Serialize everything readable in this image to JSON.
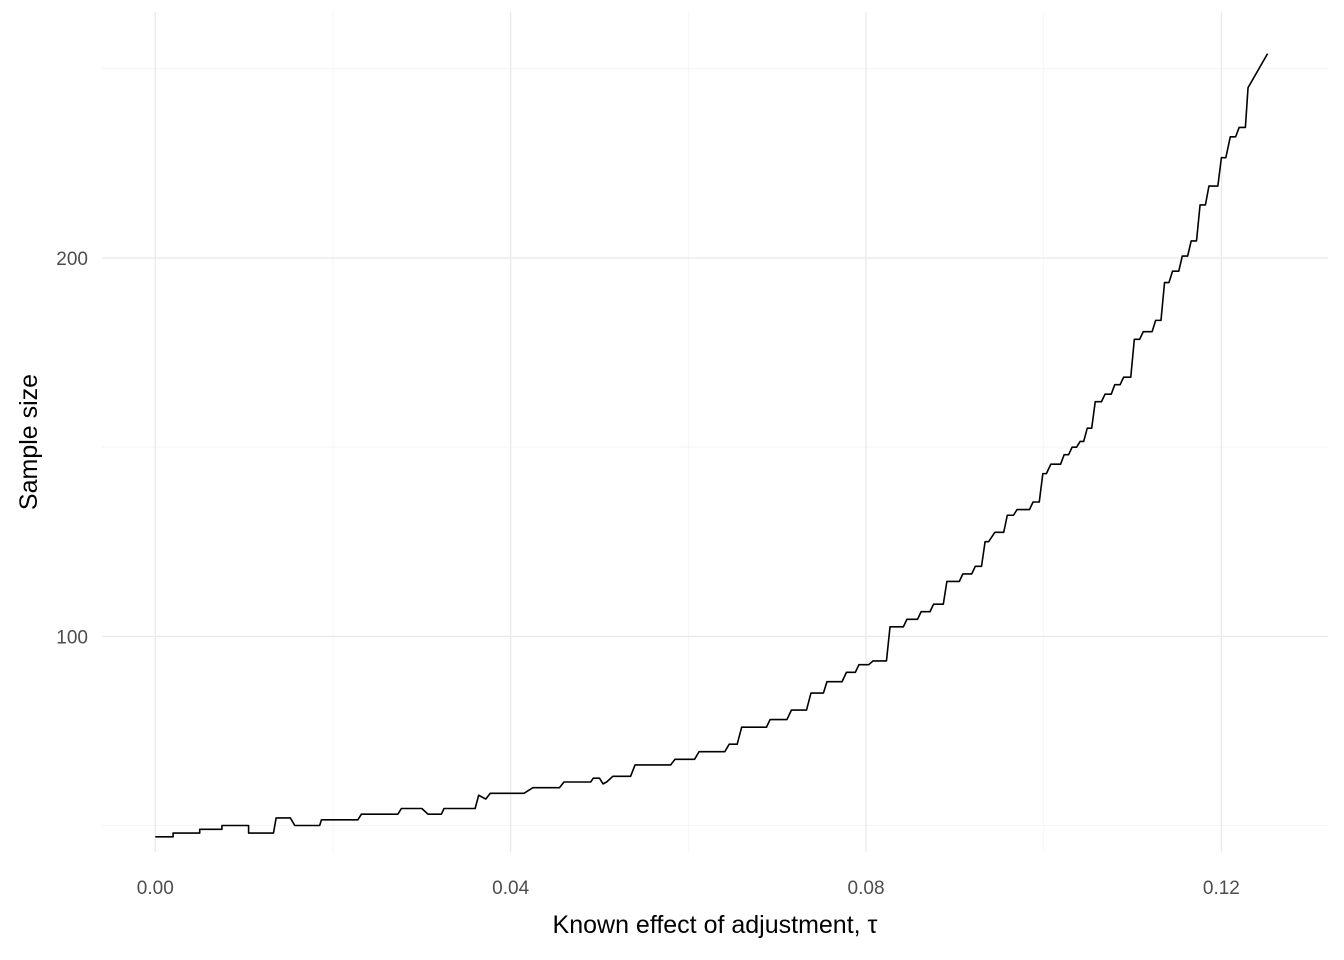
{
  "chart_data": {
    "type": "line",
    "title": "",
    "xlabel": "Known effect of adjustment, τ",
    "ylabel": "Sample size",
    "xlim": [
      -0.006,
      0.132
    ],
    "ylim": [
      43,
      265
    ],
    "x_ticks": [
      0.0,
      0.04,
      0.08,
      0.12
    ],
    "x_tick_labels": [
      "0.00",
      "0.04",
      "0.08",
      "0.12"
    ],
    "y_ticks": [
      100,
      200
    ],
    "y_tick_labels": [
      "100",
      "200"
    ],
    "grid": true,
    "legend": "none",
    "series": [
      {
        "color": "#000000",
        "x": [
          0.0,
          0.002,
          0.002,
          0.005,
          0.005,
          0.0075,
          0.0075,
          0.0105,
          0.0105,
          0.0133,
          0.0136,
          0.0152,
          0.0157,
          0.0185,
          0.0187,
          0.0228,
          0.0232,
          0.0273,
          0.0277,
          0.03,
          0.0307,
          0.0322,
          0.0325,
          0.036,
          0.0364,
          0.0372,
          0.0377,
          0.0415,
          0.0425,
          0.0455,
          0.046,
          0.049,
          0.0493,
          0.05,
          0.0504,
          0.0508,
          0.0515,
          0.0535,
          0.054,
          0.058,
          0.0585,
          0.0607,
          0.0612,
          0.0641,
          0.0646,
          0.0655,
          0.066,
          0.0688,
          0.0692,
          0.0711,
          0.0716,
          0.0733,
          0.0738,
          0.0752,
          0.0756,
          0.0773,
          0.0778,
          0.0788,
          0.0792,
          0.0803,
          0.0808,
          0.0823,
          0.0827,
          0.0842,
          0.0846,
          0.0858,
          0.0862,
          0.0872,
          0.0876,
          0.0887,
          0.0891,
          0.0905,
          0.0909,
          0.0919,
          0.0923,
          0.093,
          0.0934,
          0.0938,
          0.0945,
          0.0955,
          0.0959,
          0.0966,
          0.097,
          0.0984,
          0.0988,
          0.0995,
          0.0999,
          0.1003,
          0.1008,
          0.1019,
          0.1023,
          0.1028,
          0.1032,
          0.1037,
          0.1041,
          0.1045,
          0.1049,
          0.1054,
          0.1058,
          0.1065,
          0.1069,
          0.1076,
          0.108,
          0.1086,
          0.109,
          0.1098,
          0.1102,
          0.1108,
          0.1112,
          0.1122,
          0.1126,
          0.1132,
          0.1136,
          0.1141,
          0.1145,
          0.1152,
          0.1156,
          0.1162,
          0.1166,
          0.1172,
          0.1176,
          0.1182,
          0.1186,
          0.1196,
          0.12,
          0.1205,
          0.121,
          0.1216,
          0.122,
          0.1227,
          0.123,
          0.1252
        ],
        "y": [
          47,
          47,
          48,
          48,
          49,
          49,
          50,
          50,
          48,
          48,
          52,
          52,
          50,
          50,
          51.5,
          51.5,
          53,
          53,
          54.5,
          54.5,
          53,
          53,
          54.5,
          54.5,
          58,
          57,
          58.5,
          58.5,
          60,
          60,
          61.5,
          61.5,
          62.5,
          62.5,
          61,
          61.5,
          63,
          63,
          66,
          66,
          67.5,
          67.5,
          69.5,
          69.5,
          71.5,
          71.5,
          76,
          76,
          78,
          78,
          80.5,
          80.5,
          85,
          85,
          88,
          88,
          90.5,
          90.5,
          92.5,
          92.5,
          93.5,
          93.5,
          102.5,
          102.5,
          104.5,
          104.5,
          106.5,
          106.5,
          108.5,
          108.5,
          114.5,
          114.5,
          116.5,
          116.5,
          118.5,
          118.5,
          125,
          125,
          127.5,
          127.5,
          132,
          132,
          133.5,
          133.5,
          135.5,
          135.5,
          143,
          143,
          145.5,
          145.5,
          148,
          148,
          150,
          150,
          151.5,
          151.5,
          155,
          155,
          162,
          162,
          164,
          164,
          166.5,
          166.5,
          168.5,
          168.5,
          178.5,
          178.5,
          180.5,
          180.5,
          183.5,
          183.5,
          193.5,
          193.5,
          196.5,
          196.5,
          200.5,
          200.5,
          204.5,
          204.5,
          214,
          214,
          219,
          219,
          226.5,
          226.5,
          232,
          232,
          234.5,
          234.5,
          245,
          254
        ]
      }
    ]
  }
}
